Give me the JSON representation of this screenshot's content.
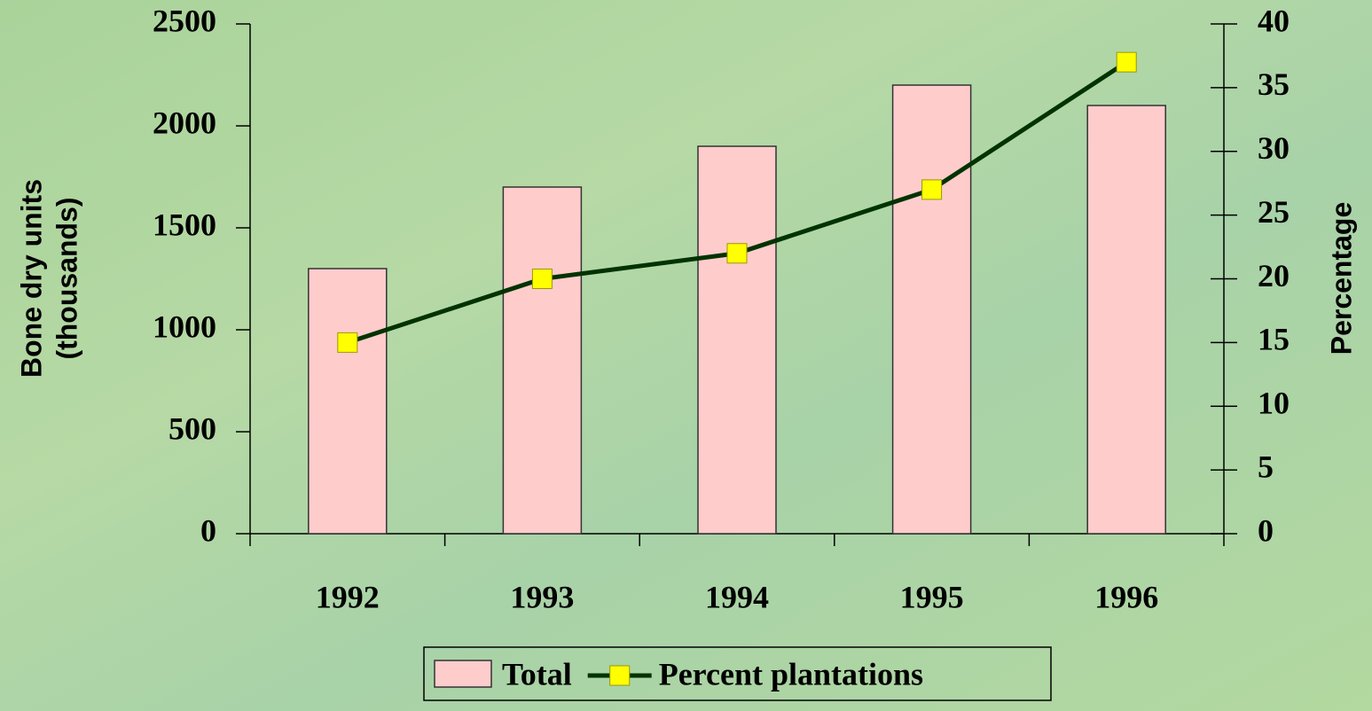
{
  "chart_data": {
    "type": "bar",
    "categories": [
      "1992",
      "1993",
      "1994",
      "1995",
      "1996"
    ],
    "ylabel": [
      "Bone dry units",
      "(thousands)"
    ],
    "y2label": "Percentage",
    "ylim": [
      0,
      2500
    ],
    "yticks": [
      0,
      500,
      1000,
      1500,
      2000,
      2500
    ],
    "y2lim": [
      0,
      40
    ],
    "y2ticks": [
      0,
      5,
      10,
      15,
      20,
      25,
      30,
      35,
      40
    ],
    "legend": "bottom",
    "series": [
      {
        "name": "Total",
        "type": "bar",
        "color": "#ffcccc",
        "values": [
          1300,
          1700,
          1900,
          2200,
          2100
        ]
      },
      {
        "name": "Percent plantations",
        "type": "line",
        "axis": "y2",
        "color": "#003300",
        "marker_color": "#ffff00",
        "values": [
          15,
          20,
          22,
          27,
          37
        ]
      }
    ]
  }
}
